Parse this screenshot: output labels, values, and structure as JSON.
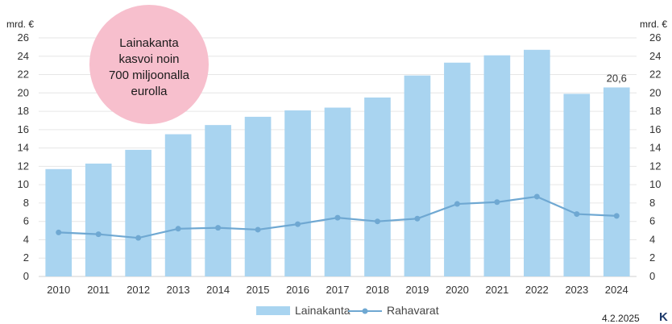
{
  "chart_data": {
    "type": "bar",
    "categories": [
      "2010",
      "2011",
      "2012",
      "2013",
      "2014",
      "2015",
      "2016",
      "2017",
      "2018",
      "2019",
      "2020",
      "2021",
      "2022",
      "2023",
      "2024"
    ],
    "series": [
      {
        "name": "Lainakanta",
        "type": "bar",
        "values": [
          11.7,
          12.3,
          13.8,
          15.5,
          16.5,
          17.4,
          18.1,
          18.4,
          19.5,
          21.9,
          23.3,
          24.1,
          24.7,
          19.9,
          20.6
        ],
        "color": "#a9d4f0"
      },
      {
        "name": "Rahavarat",
        "type": "line",
        "values": [
          4.8,
          4.6,
          4.2,
          5.2,
          5.3,
          5.1,
          5.7,
          6.4,
          6.0,
          6.3,
          7.9,
          8.1,
          8.7,
          6.8,
          6.6
        ],
        "color": "#6fa8d2"
      }
    ],
    "y_unit_left": "mrd. €",
    "y_unit_right": "mrd. €",
    "ylim": [
      0,
      26
    ],
    "yticks": [
      0,
      2,
      4,
      6,
      8,
      10,
      12,
      14,
      16,
      18,
      20,
      22,
      24,
      26
    ],
    "data_label": {
      "category": "2024",
      "text": "20,6"
    },
    "annotation": {
      "lines": [
        "Lainakanta",
        "kasvoi noin",
        "700 miljoonalla",
        "eurolla"
      ],
      "color": "#f7bfcd"
    },
    "legend_position": "bottom",
    "grid": true
  },
  "footer": {
    "date": "4.2.2025",
    "logo_text": "K"
  }
}
